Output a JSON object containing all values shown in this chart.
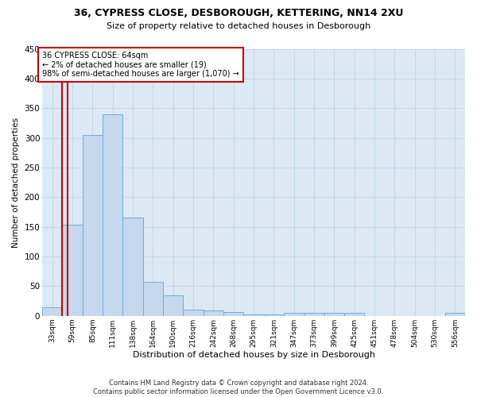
{
  "title1": "36, CYPRESS CLOSE, DESBOROUGH, KETTERING, NN14 2XU",
  "title2": "Size of property relative to detached houses in Desborough",
  "xlabel": "Distribution of detached houses by size in Desborough",
  "ylabel": "Number of detached properties",
  "bar_labels": [
    "33sqm",
    "59sqm",
    "85sqm",
    "111sqm",
    "138sqm",
    "164sqm",
    "190sqm",
    "216sqm",
    "242sqm",
    "268sqm",
    "295sqm",
    "321sqm",
    "347sqm",
    "373sqm",
    "399sqm",
    "425sqm",
    "451sqm",
    "478sqm",
    "504sqm",
    "530sqm",
    "556sqm"
  ],
  "bar_heights": [
    15,
    153,
    305,
    340,
    165,
    57,
    35,
    10,
    9,
    6,
    3,
    3,
    5,
    5,
    5,
    5,
    0,
    0,
    0,
    0,
    5
  ],
  "bar_color": "#c5d8ee",
  "bar_edge_color": "#6baed6",
  "vline_x_idx": 1,
  "vline_color": "#cc0000",
  "annotation_text": "36 CYPRESS CLOSE: 64sqm\n← 2% of detached houses are smaller (19)\n98% of semi-detached houses are larger (1,070) →",
  "annotation_box_color": "#cc0000",
  "annotation_text_color": "#000000",
  "footer_text": "Contains HM Land Registry data © Crown copyright and database right 2024.\nContains public sector information licensed under the Open Government Licence v3.0.",
  "ylim": [
    0,
    450
  ],
  "background_color": "#ffffff",
  "plot_bg_color": "#dce9f5",
  "grid_color": "#b8cfe0"
}
